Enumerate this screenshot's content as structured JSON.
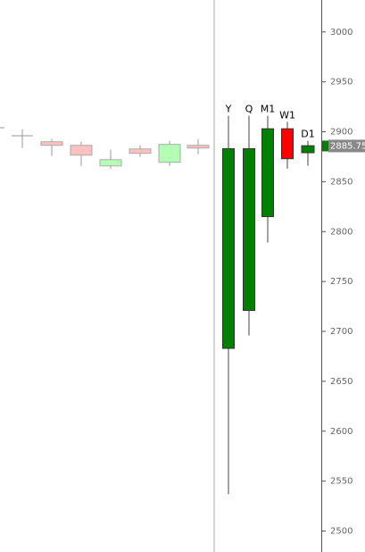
{
  "chart_data": {
    "type": "candlestick",
    "categories": [
      null,
      null,
      null,
      null,
      null,
      null,
      null,
      "Y",
      "Q",
      "M1",
      "W1",
      "D1"
    ],
    "open": [
      2896,
      2890,
      2886.4,
      2865.8,
      2882.8,
      2869.4,
      2886.4,
      2683,
      2721,
      2815,
      2903,
      2879
    ],
    "high": [
      2902.5,
      2892.7,
      2890,
      2882,
      2886.4,
      2891,
      2892.7,
      2916,
      2916,
      2916,
      2910,
      2891
    ],
    "low": [
      2883.7,
      2875.7,
      2865.8,
      2863,
      2874.8,
      2865.8,
      2877.5,
      2537,
      2696,
      2789,
      2863,
      2866
    ],
    "close": [
      2896,
      2886.4,
      2876.6,
      2872,
      2878.4,
      2887.3,
      2883.7,
      2883,
      2883,
      2903,
      2873,
      2886
    ],
    "up_color": "#008000",
    "down_color": "#ff0000",
    "past_up_color": "#b3ffb3",
    "past_down_color": "#ffc0c0",
    "last_price": 2885.75,
    "ylim": [
      2479,
      3032
    ],
    "yticks": [
      2500,
      2550,
      2600,
      2650,
      2700,
      2750,
      2800,
      2850,
      2900,
      2950,
      3000
    ]
  }
}
